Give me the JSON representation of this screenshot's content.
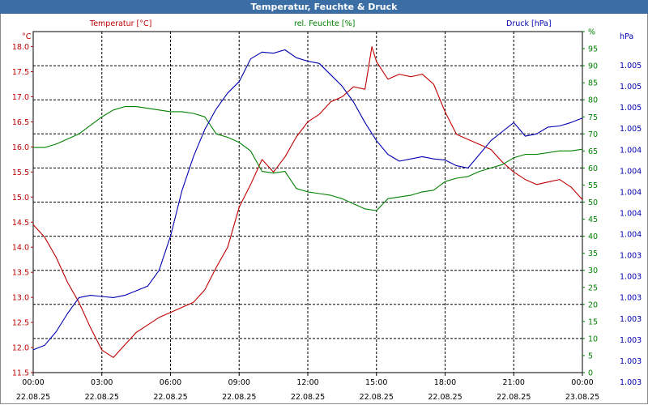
{
  "window": {
    "title": "Temperatur, Feuchte & Druck"
  },
  "colors": {
    "temperature": "#c00000",
    "humidity": "#008000",
    "pressure": "#0000b0",
    "grid": "#000000",
    "titlebar": "#3a6ea5"
  },
  "chart_data": {
    "type": "line",
    "title": "Temperatur, Feuchte & Druck",
    "xlabel": "",
    "x_ticks": [
      {
        "time": "00:00",
        "date": "22.08.25"
      },
      {
        "time": "03:00",
        "date": "22.08.25"
      },
      {
        "time": "06:00",
        "date": "22.08.25"
      },
      {
        "time": "09:00",
        "date": "22.08.25"
      },
      {
        "time": "12:00",
        "date": "22.08.25"
      },
      {
        "time": "15:00",
        "date": "22.08.25"
      },
      {
        "time": "18:00",
        "date": "22.08.25"
      },
      {
        "time": "21:00",
        "date": "22.08.25"
      },
      {
        "time": "00:00",
        "date": "23.08.25"
      }
    ],
    "xlim_hours": [
      0,
      24
    ],
    "axes": {
      "temperature": {
        "label": "Temperatur [°C]",
        "unit": "°C",
        "ylim": [
          11.5,
          18.3
        ],
        "ticks": [
          "11.5",
          "12.0",
          "12.5",
          "13.0",
          "13.5",
          "14.0",
          "14.5",
          "15.0",
          "15.5",
          "16.0",
          "16.5",
          "17.0",
          "17.5",
          "18.0"
        ]
      },
      "humidity": {
        "label": "rel. Feuchte [%]",
        "unit": "%",
        "ylim": [
          0,
          100
        ],
        "ticks": [
          "0",
          "5",
          "10",
          "15",
          "20",
          "25",
          "30",
          "35",
          "40",
          "45",
          "50",
          "55",
          "60",
          "65",
          "70",
          "75",
          "80",
          "85",
          "90",
          "95",
          "%"
        ]
      },
      "pressure": {
        "label": "Druck [hPa]",
        "unit": "hPa",
        "ticks": [
          "1.003",
          "1.003",
          "1.003",
          "1.003",
          "1.003",
          "1.003",
          "1.003",
          "1.004",
          "1.004",
          "1.004",
          "1.004",
          "1.004",
          "1.005",
          "1.005",
          "1.005",
          "1.005"
        ]
      }
    },
    "series": [
      {
        "name": "Temperatur [°C]",
        "axis": "temperature",
        "x": [
          0,
          0.5,
          1,
          1.5,
          2,
          2.5,
          3,
          3.5,
          4,
          4.5,
          5,
          5.5,
          6,
          6.5,
          7,
          7.5,
          8,
          8.5,
          9,
          9.5,
          10,
          10.5,
          11,
          11.5,
          12,
          12.5,
          13,
          13.5,
          14,
          14.5,
          14.8,
          15,
          15.5,
          16,
          16.5,
          17,
          17.5,
          18,
          18.5,
          19,
          19.5,
          20,
          20.5,
          21,
          21.5,
          22,
          22.5,
          23,
          23.5,
          24
        ],
        "values": [
          14.45,
          14.2,
          13.8,
          13.3,
          12.9,
          12.4,
          11.95,
          11.8,
          12.05,
          12.3,
          12.45,
          12.6,
          12.7,
          12.8,
          12.9,
          13.15,
          13.6,
          14.0,
          14.8,
          15.25,
          15.75,
          15.5,
          15.8,
          16.2,
          16.5,
          16.65,
          16.9,
          17.0,
          17.2,
          17.15,
          18.0,
          17.7,
          17.35,
          17.45,
          17.4,
          17.45,
          17.25,
          16.7,
          16.25,
          16.15,
          16.05,
          15.95,
          15.7,
          15.5,
          15.35,
          15.25,
          15.3,
          15.35,
          15.2,
          14.95
        ]
      },
      {
        "name": "rel. Feuchte [%]",
        "axis": "humidity",
        "x": [
          0,
          0.5,
          1,
          1.5,
          2,
          2.5,
          3,
          3.5,
          4,
          4.5,
          5,
          5.5,
          6,
          6.5,
          7,
          7.5,
          8,
          8.5,
          9,
          9.5,
          10,
          10.5,
          11,
          11.5,
          12,
          12.5,
          13,
          13.5,
          14,
          14.5,
          15,
          15.5,
          16,
          16.5,
          17,
          17.5,
          18,
          18.5,
          19,
          19.5,
          20,
          20.5,
          21,
          21.5,
          22,
          22.5,
          23,
          23.5,
          24
        ],
        "values": [
          66,
          66,
          67,
          68.5,
          70,
          72.5,
          75,
          77,
          78,
          78,
          77.5,
          77,
          76.5,
          76.5,
          76,
          75,
          70,
          69,
          67.5,
          65,
          59,
          58.5,
          59,
          54,
          53,
          52.5,
          52,
          51,
          49.5,
          48,
          47.5,
          51,
          51.5,
          52,
          53,
          53.5,
          56,
          57,
          57.5,
          59,
          60,
          61,
          63,
          64,
          64,
          64.5,
          65,
          65,
          65.5
        ]
      },
      {
        "name": "Druck [hPa]",
        "axis": "pressure",
        "x": [
          0,
          0.5,
          1,
          1.5,
          2,
          2.5,
          3,
          3.5,
          4,
          4.5,
          5,
          5.5,
          6,
          6.5,
          7,
          7.5,
          8,
          8.5,
          9,
          9.5,
          10,
          10.5,
          11,
          11.5,
          12,
          12.5,
          13,
          13.5,
          14,
          14.5,
          15,
          15.5,
          16,
          16.5,
          17,
          17.5,
          18,
          18.5,
          19,
          19.5,
          20,
          20.5,
          21,
          21.5,
          22,
          22.5,
          23,
          23.5,
          24
        ],
        "values": [
          1.0,
          1.2,
          1.8,
          2.6,
          3.3,
          3.4,
          3.35,
          3.3,
          3.4,
          3.6,
          3.8,
          4.5,
          6.0,
          8.0,
          9.5,
          10.7,
          11.6,
          12.3,
          12.8,
          13.8,
          14.1,
          14.05,
          14.2,
          13.85,
          13.7,
          13.6,
          13.1,
          12.6,
          11.9,
          11.0,
          10.2,
          9.6,
          9.3,
          9.4,
          9.5,
          9.4,
          9.35,
          9.1,
          9.0,
          9.6,
          10.2,
          10.6,
          11.0,
          10.4,
          10.5,
          10.8,
          10.85,
          11.0,
          11.2
        ]
      }
    ],
    "pressure_value_range": [
      0,
      15.0
    ]
  }
}
